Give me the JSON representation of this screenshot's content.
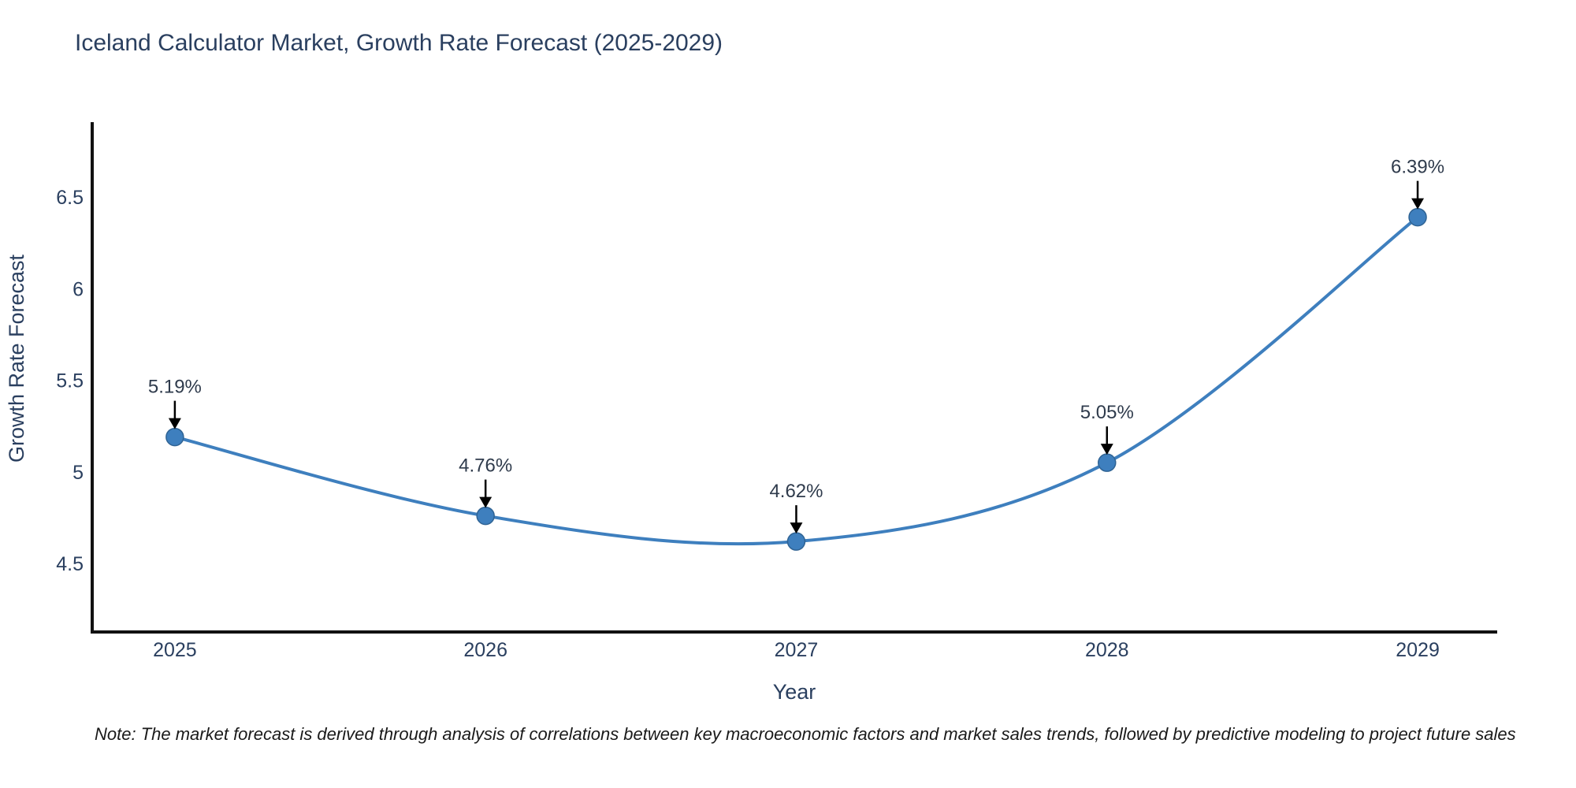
{
  "title": "Iceland Calculator Market, Growth Rate Forecast (2025-2029)",
  "note": "Note: The market forecast is derived through analysis of correlations between key macroeconomic factors and market sales trends, followed by predictive modeling to project future sales",
  "chart_data": {
    "type": "line",
    "title": "Iceland Calculator Market, Growth Rate Forecast (2025-2029)",
    "xlabel": "Year",
    "ylabel": "Growth Rate Forecast",
    "x": [
      2025,
      2026,
      2027,
      2028,
      2029
    ],
    "values": [
      5.19,
      4.76,
      4.62,
      5.05,
      6.39
    ],
    "point_labels": [
      "5.19%",
      "4.76%",
      "4.62%",
      "5.05%",
      "6.39%"
    ],
    "yticks": [
      4.5,
      5,
      5.5,
      6,
      6.5
    ],
    "ytick_labels": [
      "4.5",
      "5",
      "5.5",
      "6",
      "6.5"
    ],
    "xtick_labels": [
      "2025",
      "2026",
      "2027",
      "2028",
      "2029"
    ],
    "ylim": [
      4.126,
      6.9
    ],
    "xlim": [
      2024.734,
      2029.256
    ],
    "line_shape": "spline",
    "grid": false,
    "legend": "none",
    "colors": {
      "line": "#3e7fbe",
      "marker_fill": "#3e7fbe",
      "marker_edge": "#2f6394",
      "axis": "#111111",
      "text": "#2a3f5f",
      "annotation_arrow": "#000000",
      "background": "#ffffff"
    }
  }
}
